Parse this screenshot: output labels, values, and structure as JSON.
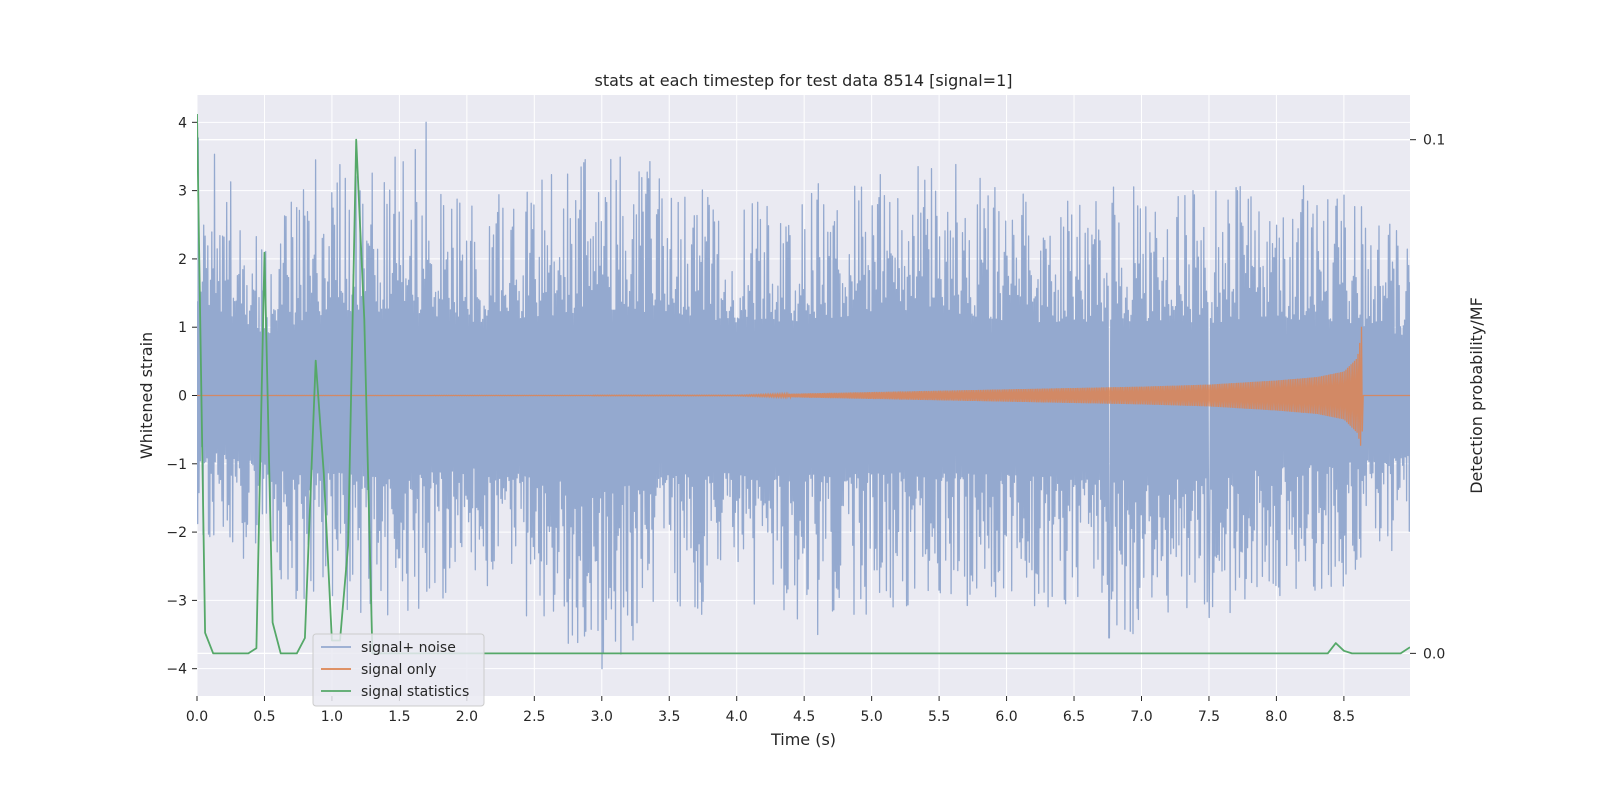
{
  "chart_data": {
    "type": "line",
    "title": "stats at each timestep for test data 8514 [signal=1]",
    "xlabel": "Time (s)",
    "ylabel": "Whitened strain",
    "y2label": "Detection probability/MF",
    "xlim": [
      0,
      8.99
    ],
    "ylim": [
      -4.4,
      4.4
    ],
    "y2lim": [
      -0.0083,
      0.1087
    ],
    "xticks": [
      "0.0",
      "0.5",
      "1.0",
      "1.5",
      "2.0",
      "2.5",
      "3.0",
      "3.5",
      "4.0",
      "4.5",
      "5.0",
      "5.5",
      "6.0",
      "6.5",
      "7.0",
      "7.5",
      "8.0",
      "8.5"
    ],
    "yticks": [
      "4",
      "3",
      "2",
      "1",
      "0",
      "−1",
      "−2",
      "−3",
      "−4"
    ],
    "y2ticks": [
      "0.1",
      "0.0"
    ],
    "grid": true,
    "legend_position": "lower-left",
    "colors": {
      "background": "#eaeaf2",
      "grid": "#ffffff",
      "noise": "#94a9cf",
      "signal": "#dd8452",
      "stats": "#55a868"
    },
    "series": [
      {
        "name": "signal+ noise",
        "axis": "left",
        "envelope": {
          "x": [
            0.0,
            0.5,
            1.0,
            1.5,
            2.0,
            2.5,
            3.0,
            3.5,
            4.0,
            4.5,
            5.0,
            5.5,
            6.0,
            6.5,
            7.0,
            7.5,
            8.0,
            8.5,
            8.99
          ],
          "upper": [
            3.9,
            2.5,
            3.4,
            3.5,
            3.0,
            3.2,
            3.6,
            3.4,
            3.0,
            3.1,
            3.4,
            3.5,
            3.1,
            3.0,
            3.1,
            3.0,
            3.2,
            3.0,
            2.3
          ],
          "lower": [
            -2.0,
            -2.8,
            -3.2,
            -3.3,
            -3.0,
            -3.3,
            -4.0,
            -3.3,
            -3.2,
            -3.3,
            -3.2,
            -3.2,
            -3.3,
            -3.3,
            -3.6,
            -3.3,
            -3.0,
            -2.8,
            -2.5
          ]
        },
        "peaks": [
          {
            "x": 0.88,
            "y": 3.45
          },
          {
            "x": 1.62,
            "y": 3.6
          },
          {
            "x": 1.7,
            "y": 4.0
          },
          {
            "x": 3.0,
            "y": -4.0
          },
          {
            "x": 4.6,
            "y": -3.5
          },
          {
            "x": 6.76,
            "y": -3.55
          },
          {
            "x": 7.5,
            "y": -3.25
          }
        ]
      },
      {
        "name": "signal only",
        "axis": "left",
        "envelope": {
          "x": [
            0.0,
            4.0,
            4.5,
            5.0,
            5.5,
            6.0,
            6.5,
            7.0,
            7.5,
            8.0,
            8.3,
            8.5,
            8.6,
            8.62,
            8.635,
            8.64,
            8.99
          ],
          "upper": [
            0.0,
            0.005,
            0.03,
            0.05,
            0.07,
            0.09,
            0.11,
            0.13,
            0.16,
            0.22,
            0.27,
            0.35,
            0.55,
            0.8,
            1.1,
            0.0,
            0.0
          ],
          "lower": [
            0.0,
            -0.005,
            -0.03,
            -0.05,
            -0.07,
            -0.09,
            -0.11,
            -0.13,
            -0.16,
            -0.22,
            -0.27,
            -0.35,
            -0.55,
            -0.7,
            -0.83,
            0.0,
            0.0
          ]
        }
      },
      {
        "name": "signal statistics",
        "axis": "right",
        "x": [
          0.0,
          0.06,
          0.12,
          0.38,
          0.44,
          0.5,
          0.56,
          0.62,
          0.74,
          0.8,
          0.88,
          0.94,
          1.0,
          1.06,
          1.12,
          1.18,
          1.24,
          1.3,
          1.36,
          8.38,
          8.44,
          8.5,
          8.56,
          8.62,
          8.92,
          8.99
        ],
        "y": [
          0.105,
          0.004,
          0.0,
          0.0,
          0.001,
          0.078,
          0.006,
          0.0,
          0.0,
          0.003,
          0.057,
          0.035,
          0.0025,
          0.0025,
          0.021,
          0.1,
          0.065,
          0.0,
          0.0,
          0.0,
          0.002,
          0.0005,
          0.0,
          0.0,
          0.0,
          0.0012
        ]
      }
    ]
  }
}
